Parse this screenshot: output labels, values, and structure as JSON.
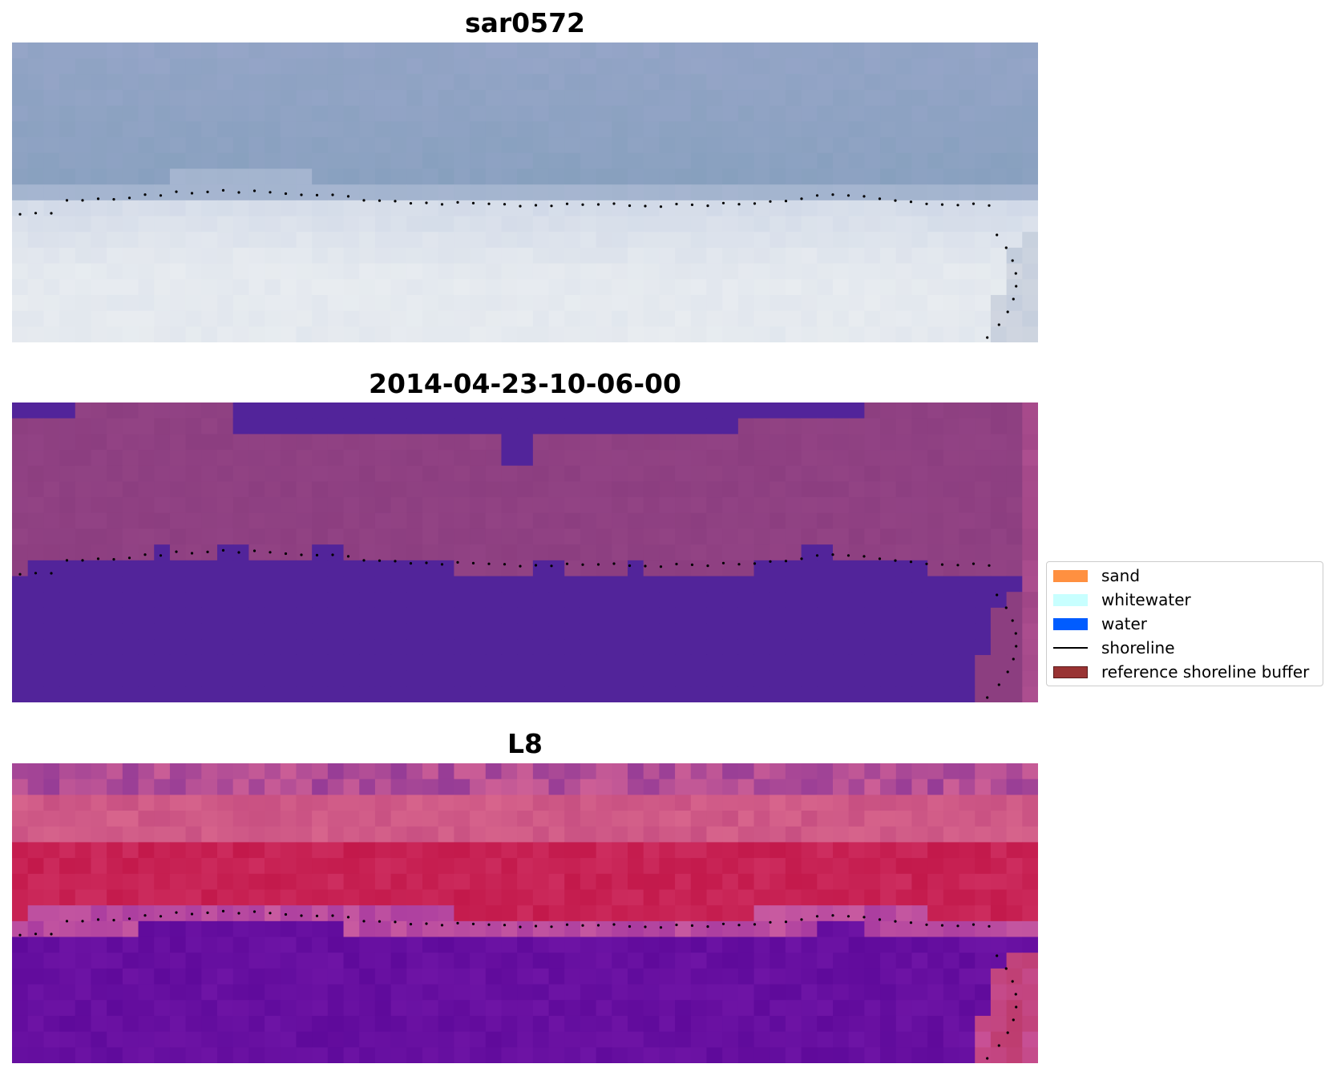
{
  "panels": [
    {
      "id": "rgb",
      "title": "sar0572",
      "colormap": "rgb"
    },
    {
      "id": "classified",
      "title": "2014-04-23-10-06-00",
      "colormap": "classified"
    },
    {
      "id": "index",
      "title": "L8",
      "colormap": "index"
    }
  ],
  "legend": {
    "items": [
      {
        "label": "sand",
        "color": "#ff9040",
        "kind": "patch"
      },
      {
        "label": "whitewater",
        "color": "#c8ffff",
        "kind": "patch"
      },
      {
        "label": "water",
        "color": "#005cff",
        "kind": "patch"
      },
      {
        "label": "shoreline",
        "color": "#000000",
        "kind": "line"
      },
      {
        "label": "reference shoreline buffer",
        "color": "#993333",
        "kind": "patch"
      }
    ]
  }
}
